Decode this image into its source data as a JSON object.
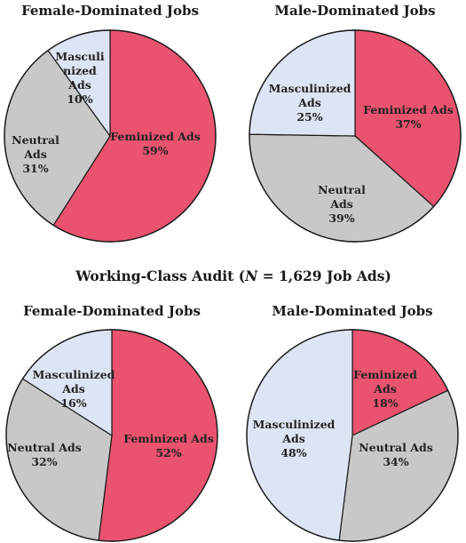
{
  "colors": {
    "feminized": "#E9536F",
    "neutral": "#C8C8C8",
    "masculinized": "#DDE4F4",
    "outline": "#1a1a1a"
  },
  "section_title": {
    "prefix": "Working-Class Audit (",
    "n_symbol": "N",
    "suffix": " = 1,629 Job Ads)"
  },
  "chart_data": [
    {
      "type": "pie",
      "title": "Female-Dominated Jobs",
      "slices": [
        {
          "key": "feminized",
          "label": [
            "Feminized Ads"
          ],
          "value": 59,
          "display": "59%"
        },
        {
          "key": "neutral",
          "label": [
            "Neutral",
            "Ads"
          ],
          "value": 31,
          "display": "31%"
        },
        {
          "key": "masculinized",
          "label": [
            "Masculi",
            "nized",
            "Ads"
          ],
          "value": 10,
          "display": "10%"
        }
      ]
    },
    {
      "type": "pie",
      "title": "Male-Dominated Jobs",
      "slices": [
        {
          "key": "feminized",
          "label": [
            "Feminized Ads"
          ],
          "value": 37,
          "display": "37%"
        },
        {
          "key": "neutral",
          "label": [
            "Neutral",
            "Ads"
          ],
          "value": 39,
          "display": "39%"
        },
        {
          "key": "masculinized",
          "label": [
            "Masculinized",
            "Ads"
          ],
          "value": 25,
          "display": "25%"
        }
      ]
    },
    {
      "type": "pie",
      "title": "Female-Dominated Jobs",
      "slices": [
        {
          "key": "feminized",
          "label": [
            "Feminized Ads"
          ],
          "value": 52,
          "display": "52%"
        },
        {
          "key": "neutral",
          "label": [
            "Neutral Ads"
          ],
          "value": 32,
          "display": "32%"
        },
        {
          "key": "masculinized",
          "label": [
            "Masculinized",
            "Ads"
          ],
          "value": 16,
          "display": "16%"
        }
      ]
    },
    {
      "type": "pie",
      "title": "Male-Dominated Jobs",
      "slices": [
        {
          "key": "feminized",
          "label": [
            "Feminized",
            "Ads"
          ],
          "value": 18,
          "display": "18%"
        },
        {
          "key": "neutral",
          "label": [
            "Neutral Ads"
          ],
          "value": 34,
          "display": "34%"
        },
        {
          "key": "masculinized",
          "label": [
            "Masculinized",
            "Ads"
          ],
          "value": 48,
          "display": "48%"
        }
      ]
    }
  ]
}
